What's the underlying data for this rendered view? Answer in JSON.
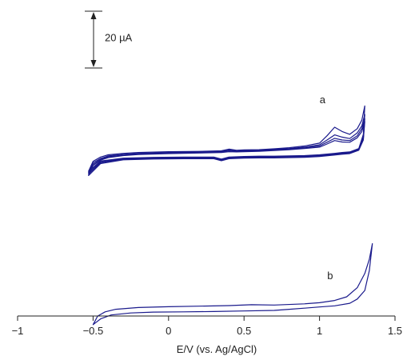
{
  "chart_data": {
    "type": "line",
    "xlabel": "E/V (vs. Ag/AgCl)",
    "xlim": [
      -1,
      1.5
    ],
    "xticks": [
      {
        "value": -1,
        "label": "−1"
      },
      {
        "value": -0.5,
        "label": "−0.5"
      },
      {
        "value": 0,
        "label": "0"
      },
      {
        "value": 0.5,
        "label": "0.5"
      },
      {
        "value": 1,
        "label": "1"
      },
      {
        "value": 1.5,
        "label": "1.5"
      }
    ],
    "current_unit": "µA",
    "scale_bar": {
      "label": "20 µA",
      "value": 20
    },
    "line_color": "#1a1a8c",
    "series": [
      {
        "name": "a",
        "label": "a",
        "label_at": [
          1.02,
          33
        ],
        "cycles": [
          {
            "forward": [
              [
                -0.53,
                9.0
              ],
              [
                -0.5,
                12.5
              ],
              [
                -0.45,
                14.0
              ],
              [
                -0.4,
                14.8
              ],
              [
                -0.3,
                15.3
              ],
              [
                -0.2,
                15.6
              ],
              [
                0,
                15.9
              ],
              [
                0.2,
                16.0
              ],
              [
                0.35,
                16.2
              ],
              [
                0.4,
                16.8
              ],
              [
                0.45,
                16.4
              ],
              [
                0.5,
                16.5
              ],
              [
                0.6,
                16.6
              ],
              [
                0.7,
                16.9
              ],
              [
                0.8,
                17.3
              ],
              [
                0.9,
                17.9
              ],
              [
                1.0,
                18.9
              ],
              [
                1.05,
                21.5
              ],
              [
                1.1,
                24.5
              ],
              [
                1.15,
                23.0
              ],
              [
                1.2,
                22.0
              ],
              [
                1.25,
                24.0
              ],
              [
                1.28,
                27.0
              ],
              [
                1.3,
                32.0
              ]
            ],
            "reverse": [
              [
                1.3,
                32.0
              ],
              [
                1.29,
                22.0
              ],
              [
                1.26,
                17.0
              ],
              [
                1.2,
                15.8
              ],
              [
                1.15,
                15.6
              ],
              [
                1.1,
                15.3
              ],
              [
                1.0,
                14.8
              ],
              [
                0.9,
                14.5
              ],
              [
                0.8,
                14.4
              ],
              [
                0.7,
                14.3
              ],
              [
                0.6,
                14.3
              ],
              [
                0.5,
                14.2
              ],
              [
                0.4,
                14.0
              ],
              [
                0.35,
                13.3
              ],
              [
                0.3,
                14.0
              ],
              [
                0.1,
                14.0
              ],
              [
                -0.1,
                13.9
              ],
              [
                -0.3,
                13.6
              ],
              [
                -0.45,
                12.6
              ],
              [
                -0.53,
                9.0
              ]
            ]
          },
          {
            "forward": [
              [
                -0.53,
                8.5
              ],
              [
                -0.5,
                12.0
              ],
              [
                -0.45,
                13.5
              ],
              [
                -0.4,
                14.4
              ],
              [
                -0.3,
                15.0
              ],
              [
                -0.2,
                15.3
              ],
              [
                0,
                15.6
              ],
              [
                0.2,
                15.8
              ],
              [
                0.35,
                16.0
              ],
              [
                0.4,
                16.5
              ],
              [
                0.45,
                16.2
              ],
              [
                0.5,
                16.3
              ],
              [
                0.6,
                16.4
              ],
              [
                0.7,
                16.7
              ],
              [
                0.8,
                17.0
              ],
              [
                0.9,
                17.5
              ],
              [
                1.0,
                18.3
              ],
              [
                1.05,
                20.0
              ],
              [
                1.1,
                21.8
              ],
              [
                1.15,
                21.0
              ],
              [
                1.2,
                20.5
              ],
              [
                1.25,
                22.5
              ],
              [
                1.28,
                25.0
              ],
              [
                1.3,
                29.0
              ]
            ],
            "reverse": [
              [
                1.3,
                29.0
              ],
              [
                1.29,
                21.0
              ],
              [
                1.26,
                16.8
              ],
              [
                1.2,
                15.6
              ],
              [
                1.15,
                15.4
              ],
              [
                1.1,
                15.1
              ],
              [
                1.0,
                14.6
              ],
              [
                0.9,
                14.3
              ],
              [
                0.8,
                14.2
              ],
              [
                0.7,
                14.1
              ],
              [
                0.6,
                14.1
              ],
              [
                0.5,
                14.0
              ],
              [
                0.4,
                13.8
              ],
              [
                0.35,
                13.1
              ],
              [
                0.3,
                13.8
              ],
              [
                0.1,
                13.8
              ],
              [
                -0.1,
                13.7
              ],
              [
                -0.3,
                13.4
              ],
              [
                -0.45,
                12.3
              ],
              [
                -0.53,
                8.5
              ]
            ]
          },
          {
            "forward": [
              [
                -0.53,
                8.0
              ],
              [
                -0.5,
                11.5
              ],
              [
                -0.45,
                13.2
              ],
              [
                -0.4,
                14.1
              ],
              [
                -0.3,
                14.7
              ],
              [
                -0.2,
                15.1
              ],
              [
                0,
                15.4
              ],
              [
                0.2,
                15.6
              ],
              [
                0.35,
                15.8
              ],
              [
                0.4,
                16.2
              ],
              [
                0.45,
                16.0
              ],
              [
                0.5,
                16.1
              ],
              [
                0.6,
                16.2
              ],
              [
                0.7,
                16.5
              ],
              [
                0.8,
                16.8
              ],
              [
                0.9,
                17.2
              ],
              [
                1.0,
                17.9
              ],
              [
                1.05,
                19.2
              ],
              [
                1.1,
                20.6
              ],
              [
                1.15,
                20.0
              ],
              [
                1.2,
                19.8
              ],
              [
                1.25,
                21.5
              ],
              [
                1.28,
                24.0
              ],
              [
                1.3,
                27.5
              ]
            ],
            "reverse": [
              [
                1.3,
                27.5
              ],
              [
                1.29,
                20.5
              ],
              [
                1.26,
                16.6
              ],
              [
                1.2,
                15.4
              ],
              [
                1.15,
                15.2
              ],
              [
                1.1,
                14.9
              ],
              [
                1.0,
                14.4
              ],
              [
                0.9,
                14.1
              ],
              [
                0.8,
                14.0
              ],
              [
                0.7,
                13.9
              ],
              [
                0.6,
                13.9
              ],
              [
                0.5,
                13.8
              ],
              [
                0.4,
                13.6
              ],
              [
                0.35,
                12.9
              ],
              [
                0.3,
                13.6
              ],
              [
                0.1,
                13.6
              ],
              [
                -0.1,
                13.5
              ],
              [
                -0.3,
                13.2
              ],
              [
                -0.45,
                12.0
              ],
              [
                -0.53,
                8.0
              ]
            ]
          },
          {
            "forward": [
              [
                -0.53,
                7.5
              ],
              [
                -0.5,
                11.0
              ],
              [
                -0.45,
                12.9
              ],
              [
                -0.4,
                13.8
              ],
              [
                -0.3,
                14.5
              ],
              [
                -0.2,
                14.9
              ],
              [
                0,
                15.2
              ],
              [
                0.2,
                15.4
              ],
              [
                0.35,
                15.6
              ],
              [
                0.4,
                15.9
              ],
              [
                0.45,
                15.8
              ],
              [
                0.5,
                15.9
              ],
              [
                0.6,
                16.0
              ],
              [
                0.7,
                16.3
              ],
              [
                0.8,
                16.6
              ],
              [
                0.9,
                17.0
              ],
              [
                1.0,
                17.5
              ],
              [
                1.05,
                18.6
              ],
              [
                1.1,
                19.8
              ],
              [
                1.15,
                19.3
              ],
              [
                1.2,
                19.2
              ],
              [
                1.25,
                20.8
              ],
              [
                1.28,
                23.0
              ],
              [
                1.3,
                26.5
              ]
            ],
            "reverse": [
              [
                1.3,
                26.5
              ],
              [
                1.29,
                20.0
              ],
              [
                1.26,
                16.4
              ],
              [
                1.2,
                15.2
              ],
              [
                1.15,
                15.0
              ],
              [
                1.1,
                14.7
              ],
              [
                1.0,
                14.2
              ],
              [
                0.9,
                13.9
              ],
              [
                0.8,
                13.8
              ],
              [
                0.7,
                13.7
              ],
              [
                0.6,
                13.7
              ],
              [
                0.5,
                13.6
              ],
              [
                0.4,
                13.4
              ],
              [
                0.35,
                12.7
              ],
              [
                0.3,
                13.4
              ],
              [
                0.1,
                13.4
              ],
              [
                -0.1,
                13.3
              ],
              [
                -0.3,
                13.0
              ],
              [
                -0.45,
                11.7
              ],
              [
                -0.53,
                7.5
              ]
            ]
          }
        ]
      },
      {
        "name": "b",
        "label": "b",
        "label_at": [
          1.07,
          -29
        ],
        "cycles": [
          {
            "forward": [
              [
                -0.5,
                -45.0
              ],
              [
                -0.47,
                -42.0
              ],
              [
                -0.42,
                -40.5
              ],
              [
                -0.35,
                -39.6
              ],
              [
                -0.2,
                -39.0
              ],
              [
                0,
                -38.7
              ],
              [
                0.2,
                -38.5
              ],
              [
                0.4,
                -38.3
              ],
              [
                0.55,
                -38.0
              ],
              [
                0.7,
                -38.1
              ],
              [
                0.9,
                -37.7
              ],
              [
                1.0,
                -37.3
              ],
              [
                1.1,
                -36.5
              ],
              [
                1.18,
                -35.2
              ],
              [
                1.25,
                -32.0
              ],
              [
                1.3,
                -27.0
              ],
              [
                1.33,
                -22.0
              ],
              [
                1.35,
                -16.5
              ]
            ],
            "reverse": [
              [
                1.35,
                -16.5
              ],
              [
                1.33,
                -26.0
              ],
              [
                1.3,
                -33.0
              ],
              [
                1.25,
                -36.0
              ],
              [
                1.2,
                -37.5
              ],
              [
                1.1,
                -38.4
              ],
              [
                1.0,
                -38.8
              ],
              [
                0.9,
                -39.2
              ],
              [
                0.8,
                -39.6
              ],
              [
                0.7,
                -40.0
              ],
              [
                0.5,
                -40.2
              ],
              [
                0.3,
                -40.4
              ],
              [
                0.1,
                -40.5
              ],
              [
                -0.1,
                -40.6
              ],
              [
                -0.25,
                -40.9
              ],
              [
                -0.38,
                -41.6
              ],
              [
                -0.45,
                -43.0
              ],
              [
                -0.5,
                -45.0
              ]
            ]
          }
        ]
      }
    ]
  }
}
